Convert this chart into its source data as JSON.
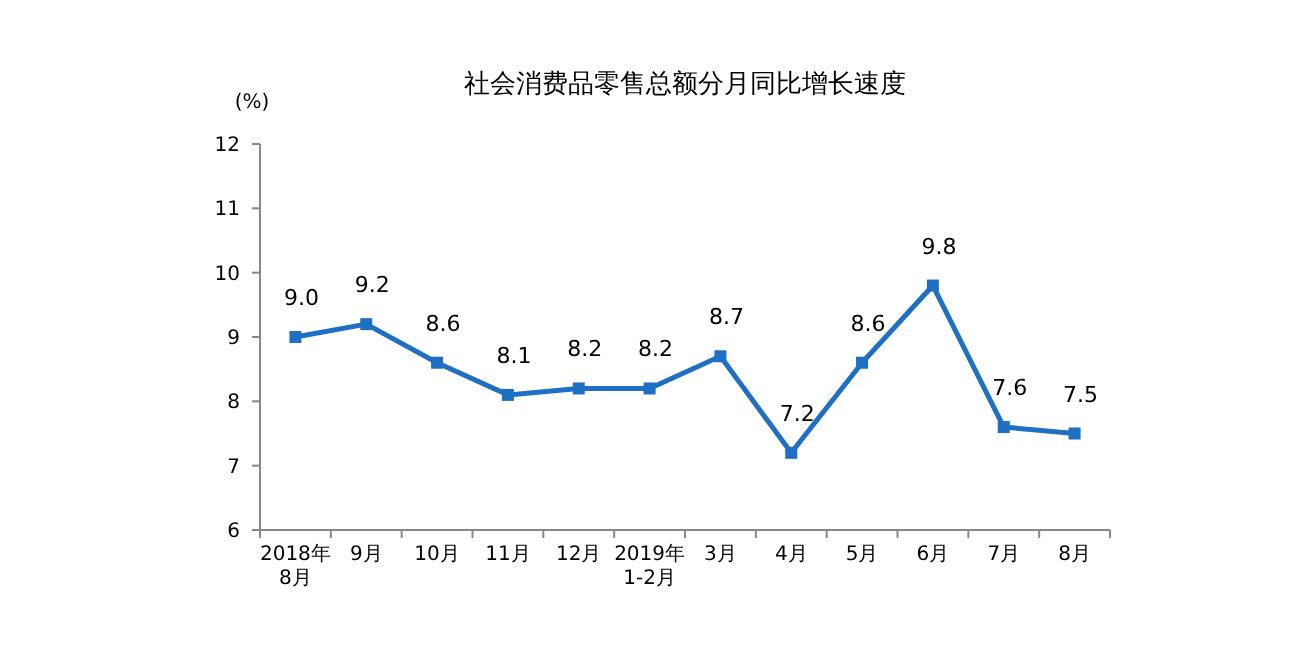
{
  "chart_data": {
    "type": "line",
    "title": "社会消费品零售总额分月同比增长速度",
    "ylabel": "(%)",
    "categories": [
      "2018年\n8月",
      "9月",
      "10月",
      "11月",
      "12月",
      "2019年\n1-2月",
      "3月",
      "4月",
      "5月",
      "6月",
      "7月",
      "8月"
    ],
    "series": [
      {
        "color": "#1f6fc5",
        "values": [
          9.0,
          9.2,
          8.6,
          8.1,
          8.2,
          8.2,
          8.7,
          7.2,
          8.6,
          9.8,
          7.6,
          7.5
        ],
        "value_labels": [
          "9.0",
          "9.2",
          "8.6",
          "8.1",
          "8.2",
          "8.2",
          "8.7",
          "7.2",
          "8.6",
          "9.8",
          "7.6",
          "7.5"
        ]
      }
    ],
    "ylim": [
      6,
      12
    ],
    "yticks": [
      6,
      7,
      8,
      9,
      10,
      11,
      12
    ],
    "grid": false,
    "marker": "square",
    "line_style": "solid"
  }
}
